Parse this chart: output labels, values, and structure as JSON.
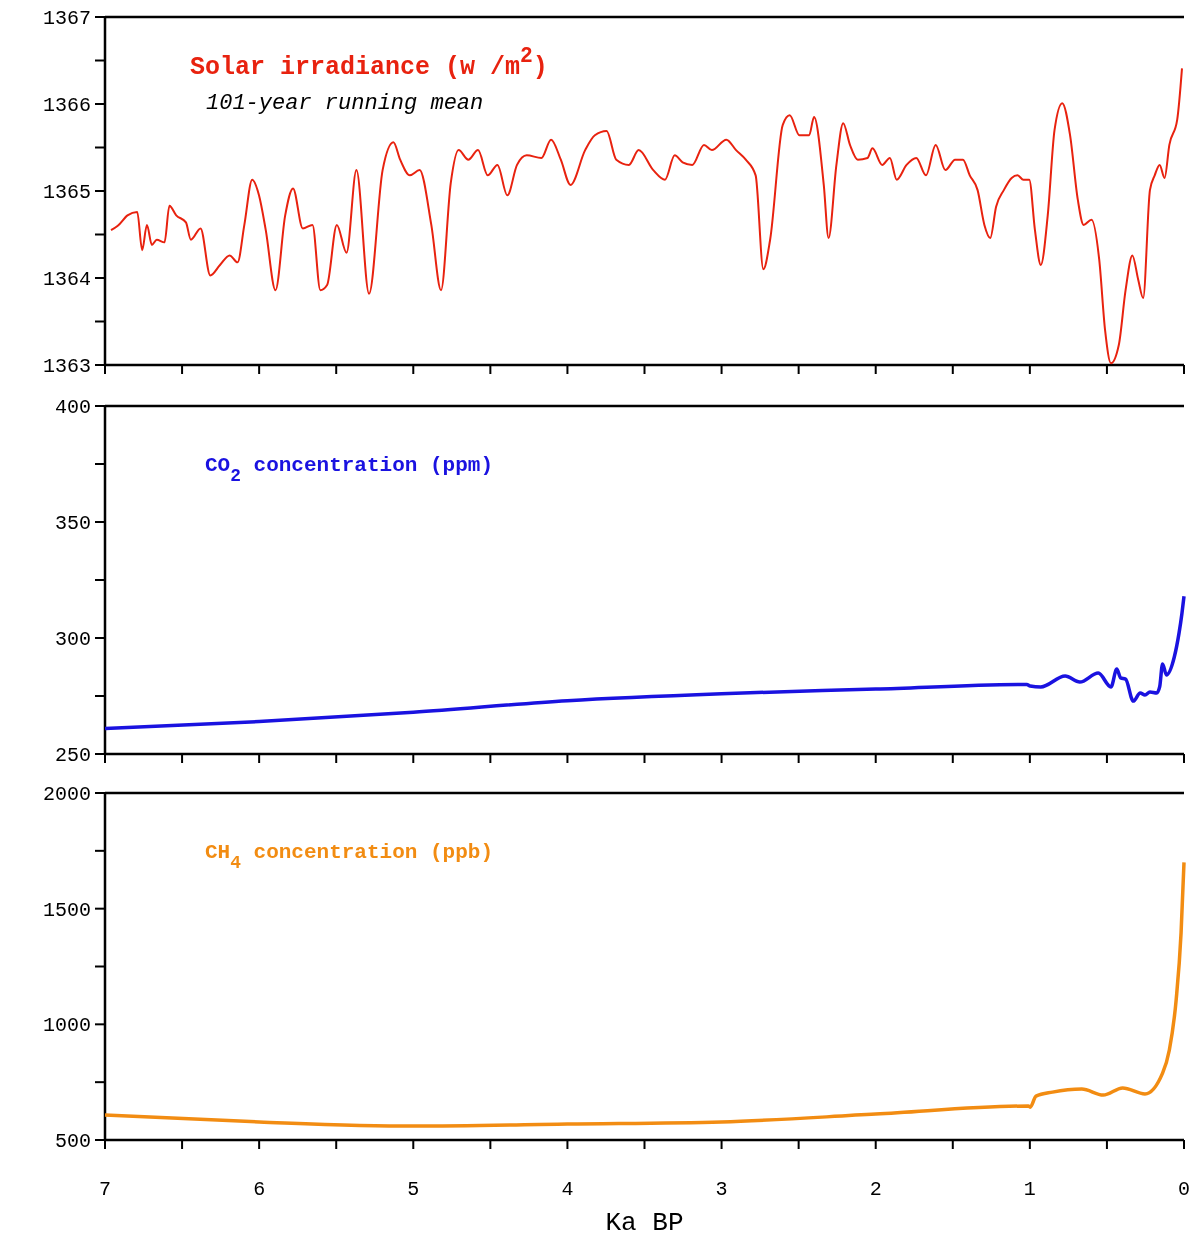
{
  "chart_data": [
    {
      "type": "line",
      "xlim": [
        7,
        0
      ],
      "ylim": [
        1363,
        1367
      ],
      "xticks": [
        7,
        {
          "value": 6.5,
          "label": null
        },
        6,
        {
          "value": 5.5,
          "label": null
        },
        5,
        {
          "value": 4.5,
          "label": null
        },
        4,
        {
          "value": 3.5,
          "label": null
        },
        3,
        {
          "value": 2.5,
          "label": null
        },
        2,
        {
          "value": 1.5,
          "label": null
        },
        1,
        {
          "value": 0.5,
          "label": null
        },
        0
      ],
      "yticks": [
        1363,
        {
          "value": 1363.5,
          "label": null
        },
        1364,
        {
          "value": 1364.5,
          "label": null
        },
        1365,
        {
          "value": 1365.5,
          "label": null
        },
        1366,
        {
          "value": 1366.5,
          "label": null
        },
        1367
      ],
      "tick_labels": "y",
      "annotations": [
        "101-year running mean"
      ],
      "series": [
        {
          "name": "Solar irradiance (w /m$^{2}$)",
          "color": "#e8220f",
          "x": [
            6.961,
            6.917,
            6.854,
            6.791,
            6.759,
            6.728,
            6.696,
            6.664,
            6.614,
            6.582,
            6.538,
            6.475,
            6.443,
            6.38,
            6.317,
            6.254,
            6.191,
            6.14,
            6.096,
            6.045,
            6.001,
            5.957,
            5.894,
            5.831,
            5.78,
            5.717,
            5.654,
            5.603,
            5.559,
            5.496,
            5.433,
            5.369,
            5.287,
            5.199,
            5.129,
            5.085,
            5.022,
            4.959,
            4.883,
            4.82,
            4.757,
            4.706,
            4.643,
            4.58,
            4.517,
            4.454,
            4.39,
            4.327,
            4.264,
            4.169,
            4.106,
            4.043,
            3.98,
            3.885,
            3.822,
            3.746,
            3.683,
            3.601,
            3.538,
            3.443,
            3.367,
            3.304,
            3.253,
            3.19,
            3.114,
            3.063,
            2.969,
            2.906,
            2.843,
            2.779,
            2.729,
            2.685,
            2.603,
            2.558,
            2.495,
            2.432,
            2.4,
            2.337,
            2.306,
            2.255,
            2.211,
            2.167,
            2.116,
            2.053,
            2.021,
            1.958,
            1.908,
            1.864,
            1.8,
            1.737,
            1.674,
            1.611,
            1.548,
            1.485,
            1.434,
            1.39,
            1.339,
            1.295,
            1.257,
            1.219,
            1.169,
            1.118,
            1.08,
            1.042,
            1.004,
            0.967,
            0.929,
            0.884,
            0.84,
            0.79,
            0.739,
            0.689,
            0.651,
            0.6,
            0.55,
            0.512,
            0.474,
            0.423,
            0.379,
            0.335,
            0.297,
            0.265,
            0.221,
            0.19,
            0.158,
            0.126,
            0.095,
            0.044,
            0.013
          ],
          "values": [
            1364.55,
            1364.6,
            1364.72,
            1364.76,
            1364.32,
            1364.61,
            1364.38,
            1364.44,
            1364.41,
            1364.83,
            1364.72,
            1364.64,
            1364.44,
            1364.57,
            1364.03,
            1364.15,
            1364.26,
            1364.18,
            1364.61,
            1365.13,
            1364.95,
            1364.55,
            1363.86,
            1364.72,
            1365.03,
            1364.57,
            1364.61,
            1363.86,
            1363.92,
            1364.61,
            1364.29,
            1365.24,
            1363.82,
            1365.24,
            1365.56,
            1365.36,
            1365.18,
            1365.24,
            1364.61,
            1363.86,
            1365.09,
            1365.47,
            1365.36,
            1365.47,
            1365.18,
            1365.3,
            1364.95,
            1365.3,
            1365.41,
            1365.38,
            1365.59,
            1365.36,
            1365.07,
            1365.47,
            1365.64,
            1365.69,
            1365.36,
            1365.3,
            1365.47,
            1365.24,
            1365.13,
            1365.41,
            1365.33,
            1365.3,
            1365.53,
            1365.47,
            1365.59,
            1365.47,
            1365.36,
            1365.18,
            1364.1,
            1364.44,
            1365.76,
            1365.87,
            1365.64,
            1365.64,
            1365.85,
            1365.07,
            1364.46,
            1365.3,
            1365.78,
            1365.53,
            1365.36,
            1365.38,
            1365.49,
            1365.3,
            1365.38,
            1365.13,
            1365.3,
            1365.38,
            1365.18,
            1365.53,
            1365.24,
            1365.36,
            1365.36,
            1365.18,
            1365.01,
            1364.61,
            1364.46,
            1364.82,
            1365.01,
            1365.15,
            1365.18,
            1365.13,
            1365.13,
            1364.55,
            1364.15,
            1364.72,
            1365.7,
            1366.01,
            1365.64,
            1364.9,
            1364.61,
            1364.67,
            1364.21,
            1363.4,
            1363.02,
            1363.23,
            1363.86,
            1364.26,
            1363.98,
            1363.77,
            1365.01,
            1365.18,
            1365.3,
            1365.15,
            1365.53,
            1365.82,
            1366.41
          ]
        }
      ]
    },
    {
      "type": "line",
      "xlim": [
        7,
        0
      ],
      "ylim": [
        250,
        400
      ],
      "xticks": [
        7,
        {
          "value": 6.5,
          "label": null
        },
        6,
        {
          "value": 5.5,
          "label": null
        },
        5,
        {
          "value": 4.5,
          "label": null
        },
        4,
        {
          "value": 3.5,
          "label": null
        },
        3,
        {
          "value": 2.5,
          "label": null
        },
        2,
        {
          "value": 1.5,
          "label": null
        },
        1,
        {
          "value": 0.5,
          "label": null
        },
        0
      ],
      "yticks": [
        250,
        {
          "value": 275,
          "label": null
        },
        300,
        {
          "value": 325,
          "label": null
        },
        350,
        {
          "value": 375,
          "label": null
        },
        400
      ],
      "tick_labels": "y",
      "series": [
        {
          "name": "CO$_{2}$ concentration (ppm)",
          "color": "#1a12e0",
          "x": [
            7,
            6,
            5,
            4,
            3,
            2,
            1.02,
            0.998,
            0.929,
            0.771,
            0.676,
            0.556,
            0.474,
            0.436,
            0.411,
            0.379,
            0.329,
            0.284,
            0.253,
            0.221,
            0.177,
            0.158,
            0.139,
            0.114,
            0.063,
            0.032,
            0.013,
            0
          ],
          "values": [
            261,
            264,
            268,
            273,
            276,
            278,
            280,
            279.3,
            278.9,
            283.6,
            281,
            284.9,
            278.9,
            286.6,
            282.8,
            282.3,
            272.8,
            276.3,
            275.4,
            276.7,
            276.3,
            278.9,
            288.8,
            284.1,
            291.8,
            302.2,
            310.8,
            318
          ]
        }
      ]
    },
    {
      "type": "line",
      "xlim": [
        7,
        0
      ],
      "ylim": [
        500,
        2000
      ],
      "xlabel": "Ka BP",
      "xticks": [
        7,
        {
          "value": 6.5,
          "label": null
        },
        6,
        {
          "value": 5.5,
          "label": null
        },
        5,
        {
          "value": 4.5,
          "label": null
        },
        4,
        {
          "value": 3.5,
          "label": null
        },
        3,
        {
          "value": 2.5,
          "label": null
        },
        2,
        {
          "value": 1.5,
          "label": null
        },
        1,
        {
          "value": 0.5,
          "label": null
        },
        0
      ],
      "yticks": [
        500,
        {
          "value": 750,
          "label": null
        },
        1000,
        {
          "value": 1250,
          "label": null
        },
        1500,
        {
          "value": 1750,
          "label": null
        },
        2000
      ],
      "series": [
        {
          "name": "CH$_{4}$ concentration (ppb)",
          "color": "#f28c12",
          "x": [
            7,
            6,
            5,
            4,
            3,
            2,
            1.01,
            0.998,
            0.96,
            0.853,
            0.663,
            0.524,
            0.398,
            0.253,
            0.139,
            0.095,
            0.051,
            0.019,
            0
          ],
          "values": [
            608,
            578,
            560,
            569,
            578,
            612,
            647,
            642,
            690,
            707,
            720,
            694,
            725,
            699,
            789,
            889,
            1105,
            1395,
            1700
          ]
        }
      ]
    }
  ]
}
